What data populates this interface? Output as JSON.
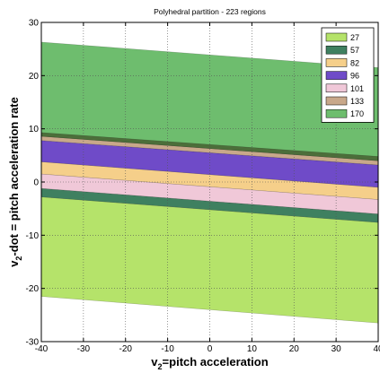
{
  "chart_data": {
    "type": "area",
    "title": "Polyhedral partition - 223 regions",
    "xlabel": "v",
    "xlabel_sub": "2",
    "xlabel_rest": "=pitch acceleration",
    "ylabel": "v",
    "ylabel_sub": "2",
    "ylabel_rest": "-dot = pitch acceleration rate",
    "xlim": [
      -40,
      40
    ],
    "ylim": [
      -30,
      30
    ],
    "xticks": [
      -40,
      -30,
      -20,
      -10,
      0,
      10,
      20,
      30,
      40
    ],
    "yticks": [
      -30,
      -20,
      -10,
      0,
      10,
      20,
      30
    ],
    "xtick_labels": [
      "-40",
      "-30",
      "-20",
      "-10",
      "0",
      "10",
      "20",
      "30",
      "40"
    ],
    "ytick_labels": [
      "-30",
      "-20",
      "-10",
      "0",
      "10",
      "20",
      "30"
    ],
    "grid": true,
    "legend_position": "top-right",
    "series": [
      {
        "name": "27",
        "color": "#b5e36a",
        "band": [
          {
            "x": -40,
            "y_low": -21.5,
            "y_high": -2.8
          },
          {
            "x": 40,
            "y_low": -26.5,
            "y_high": -7.6
          }
        ]
      },
      {
        "name": "57",
        "color": "#3f8060",
        "band": [
          {
            "x": -40,
            "y_low": -2.8,
            "y_high": -1.2
          },
          {
            "x": 40,
            "y_low": -7.6,
            "y_high": -6.0
          }
        ]
      },
      {
        "name": "82",
        "color": "#f5cf8a",
        "band": [
          {
            "x": -40,
            "y_low": 1.5,
            "y_high": 3.8
          },
          {
            "x": 40,
            "y_low": -3.3,
            "y_high": -1.0
          }
        ]
      },
      {
        "name": "96",
        "color": "#6f4bc8",
        "band": [
          {
            "x": -40,
            "y_low": 3.8,
            "y_high": 7.8
          },
          {
            "x": 40,
            "y_low": -1.0,
            "y_high": 3.2
          }
        ]
      },
      {
        "name": "101",
        "color": "#f0c8d8",
        "band": [
          {
            "x": -40,
            "y_low": -1.2,
            "y_high": 1.5
          },
          {
            "x": 40,
            "y_low": -6.0,
            "y_high": -3.3
          }
        ]
      },
      {
        "name": "133",
        "color": "#c8a88a",
        "band": [
          {
            "x": -40,
            "y_low": 7.8,
            "y_high": 8.6
          },
          {
            "x": 40,
            "y_low": 3.2,
            "y_high": 4.0
          }
        ]
      },
      {
        "name": "170",
        "color": "#6ebd6e",
        "band": [
          {
            "x": -40,
            "y_low": 8.6,
            "y_high": 26.3
          },
          {
            "x": 40,
            "y_low": 4.0,
            "y_high": 21.5
          }
        ]
      }
    ],
    "extra_regions": [
      {
        "color": "#4c6e3a",
        "band": [
          {
            "x": -40,
            "y_low": 8.6,
            "y_high": 9.3
          },
          {
            "x": 40,
            "y_low": 4.0,
            "y_high": 4.8
          }
        ]
      }
    ]
  }
}
